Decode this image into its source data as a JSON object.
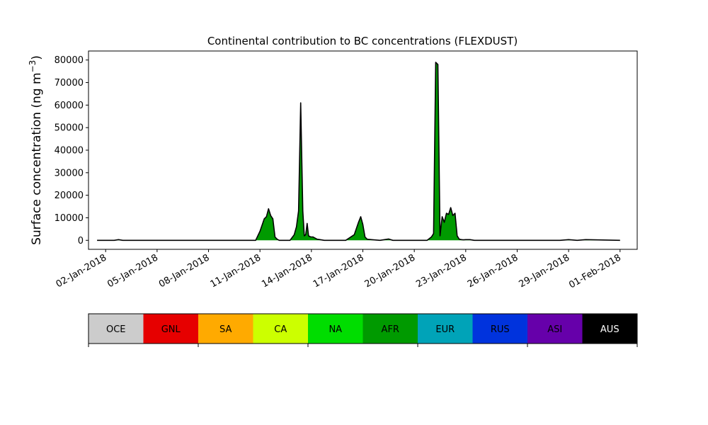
{
  "chart_data": {
    "type": "area",
    "title": "Continental contribution to BC concentrations (FLEXDUST)",
    "ylabel": "Surface concentration (ng m",
    "ylabel_sup": "−3",
    "ylabel_close": ")",
    "xlabel": "",
    "ylim": [
      -4000,
      84000
    ],
    "yticks": [
      0,
      10000,
      20000,
      30000,
      40000,
      50000,
      60000,
      70000,
      80000
    ],
    "ytick_labels": [
      "0",
      "10000",
      "20000",
      "30000",
      "40000",
      "50000",
      "60000",
      "70000",
      "80000"
    ],
    "xlim": [
      "2018-01-01",
      "2018-02-02"
    ],
    "xticks": [
      "2018-01-02",
      "2018-01-05",
      "2018-01-08",
      "2018-01-11",
      "2018-01-14",
      "2018-01-17",
      "2018-01-20",
      "2018-01-23",
      "2018-01-26",
      "2018-01-29",
      "2018-02-01"
    ],
    "xtick_labels": [
      "02-Jan-2018",
      "05-Jan-2018",
      "08-Jan-2018",
      "11-Jan-2018",
      "14-Jan-2018",
      "17-Jan-2018",
      "20-Jan-2018",
      "23-Jan-2018",
      "26-Jan-2018",
      "29-Jan-2018",
      "01-Feb-2018"
    ],
    "grid": false,
    "series_fill_color": "#009a00",
    "outline_color": "#000000",
    "x": [
      "2018-01-01T12:00",
      "2018-01-02T12:00",
      "2018-01-02T18:00",
      "2018-01-03T00:00",
      "2018-01-03T12:00",
      "2018-01-05T00:00",
      "2018-01-08T00:00",
      "2018-01-10T18:00",
      "2018-01-11T00:00",
      "2018-01-11T06:00",
      "2018-01-11T09:00",
      "2018-01-11T12:00",
      "2018-01-11T15:00",
      "2018-01-11T18:00",
      "2018-01-11T21:00",
      "2018-01-12T00:00",
      "2018-01-12T03:00",
      "2018-01-12T06:00",
      "2018-01-12T12:00",
      "2018-01-12T18:00",
      "2018-01-13T00:00",
      "2018-01-13T03:00",
      "2018-01-13T06:00",
      "2018-01-13T09:00",
      "2018-01-13T12:00",
      "2018-01-13T14:00",
      "2018-01-13T16:00",
      "2018-01-13T18:00",
      "2018-01-13T20:00",
      "2018-01-13T23:00",
      "2018-01-14T02:00",
      "2018-01-14T05:00",
      "2018-01-14T08:00",
      "2018-01-14T12:00",
      "2018-01-14T18:00",
      "2018-01-15T00:00",
      "2018-01-15T06:00",
      "2018-01-15T12:00",
      "2018-01-16T00:00",
      "2018-01-16T12:00",
      "2018-01-16T18:00",
      "2018-01-16T21:00",
      "2018-01-17T00:00",
      "2018-01-17T03:00",
      "2018-01-17T06:00",
      "2018-01-17T12:00",
      "2018-01-18T00:00",
      "2018-01-18T12:00",
      "2018-01-18T18:00",
      "2018-01-19T00:00",
      "2018-01-19T12:00",
      "2018-01-20T00:00",
      "2018-01-20T12:00",
      "2018-01-20T18:00",
      "2018-01-21T00:00",
      "2018-01-21T03:00",
      "2018-01-21T06:00",
      "2018-01-21T09:00",
      "2018-01-21T12:00",
      "2018-01-21T15:00",
      "2018-01-21T18:00",
      "2018-01-21T21:00",
      "2018-01-22T00:00",
      "2018-01-22T03:00",
      "2018-01-22T06:00",
      "2018-01-22T09:00",
      "2018-01-22T12:00",
      "2018-01-22T15:00",
      "2018-01-22T18:00",
      "2018-01-22T21:00",
      "2018-01-23T00:00",
      "2018-01-23T06:00",
      "2018-01-23T12:00",
      "2018-01-24T00:00",
      "2018-01-24T12:00",
      "2018-01-25T00:00",
      "2018-01-26T00:00",
      "2018-01-27T00:00",
      "2018-01-28T00:00",
      "2018-01-28T12:00",
      "2018-01-29T00:00",
      "2018-01-29T12:00",
      "2018-01-30T00:00",
      "2018-02-01T00:00"
    ],
    "values": [
      0,
      0,
      300,
      0,
      0,
      0,
      0,
      0,
      4000,
      9500,
      10500,
      14000,
      11000,
      9500,
      1500,
      500,
      0,
      0,
      0,
      0,
      2500,
      6000,
      13000,
      61000,
      13000,
      2000,
      2500,
      7500,
      2000,
      1500,
      1500,
      1000,
      500,
      300,
      0,
      0,
      0,
      0,
      0,
      2500,
      8000,
      10500,
      7000,
      1500,
      500,
      300,
      0,
      600,
      0,
      0,
      0,
      0,
      0,
      0,
      1500,
      3000,
      79000,
      78000,
      2000,
      10500,
      8000,
      12000,
      11500,
      14500,
      11000,
      12000,
      2000,
      500,
      300,
      200,
      300,
      300,
      0,
      0,
      0,
      0,
      0,
      0,
      0,
      0,
      300,
      0,
      300,
      0
    ]
  },
  "legend": {
    "entries": [
      {
        "name": "OCE",
        "color": "#cccccc",
        "text_color": "#000000"
      },
      {
        "name": "GNL",
        "color": "#e60000",
        "text_color": "#000000"
      },
      {
        "name": "SA",
        "color": "#ffaa00",
        "text_color": "#000000"
      },
      {
        "name": "CA",
        "color": "#ccff00",
        "text_color": "#000000"
      },
      {
        "name": "NA",
        "color": "#00dd00",
        "text_color": "#000000"
      },
      {
        "name": "AFR",
        "color": "#009a00",
        "text_color": "#000000"
      },
      {
        "name": "EUR",
        "color": "#00a3b8",
        "text_color": "#000000"
      },
      {
        "name": "RUS",
        "color": "#0033dd",
        "text_color": "#000000"
      },
      {
        "name": "ASI",
        "color": "#6600aa",
        "text_color": "#000000"
      },
      {
        "name": "AUS",
        "color": "#000000",
        "text_color": "#ffffff"
      }
    ]
  }
}
